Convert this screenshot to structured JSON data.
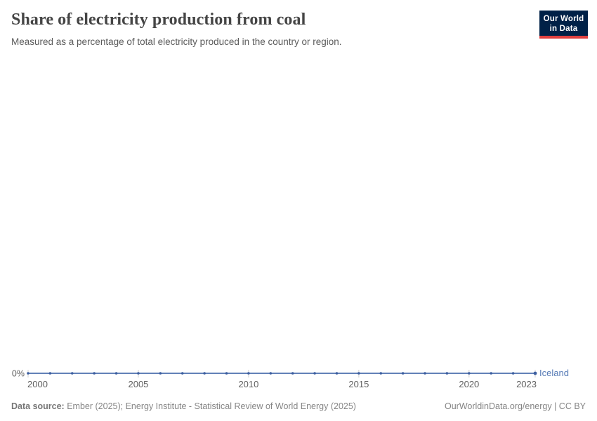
{
  "header": {
    "title": "Share of electricity production from coal",
    "subtitle": "Measured as a percentage of total electricity produced in the country or region.",
    "logo": {
      "line1": "Our World",
      "line2": "in Data"
    }
  },
  "chart_data": {
    "type": "line",
    "title": "Share of electricity production from coal",
    "subtitle": "Measured as a percentage of total electricity produced in the country or region.",
    "xlabel": "",
    "ylabel": "",
    "x_ticks": [
      2000,
      2005,
      2010,
      2015,
      2020,
      2023
    ],
    "y_ticks": [
      "0%"
    ],
    "ylim": [
      0,
      0
    ],
    "grid": false,
    "legend_position": "end-of-line",
    "series": [
      {
        "name": "Iceland",
        "x": [
          2000,
          2001,
          2002,
          2003,
          2004,
          2005,
          2006,
          2007,
          2008,
          2009,
          2010,
          2011,
          2012,
          2013,
          2014,
          2015,
          2016,
          2017,
          2018,
          2019,
          2020,
          2021,
          2022,
          2023
        ],
        "values": [
          0,
          0,
          0,
          0,
          0,
          0,
          0,
          0,
          0,
          0,
          0,
          0,
          0,
          0,
          0,
          0,
          0,
          0,
          0,
          0,
          0,
          0,
          0,
          0
        ],
        "unit": "%"
      }
    ],
    "colors": {
      "line": "#4c6fae",
      "dot": "#3d5fa0",
      "entity_label": "#557ab5",
      "tick_mark": "#cfcfcf",
      "axis_text": "#606060"
    }
  },
  "footer": {
    "datasource_label": "Data source:",
    "datasource_text": "Ember (2025); Energy Institute - Statistical Review of World Energy (2025)",
    "link_text": "OurWorldinData.org/energy | CC BY"
  }
}
